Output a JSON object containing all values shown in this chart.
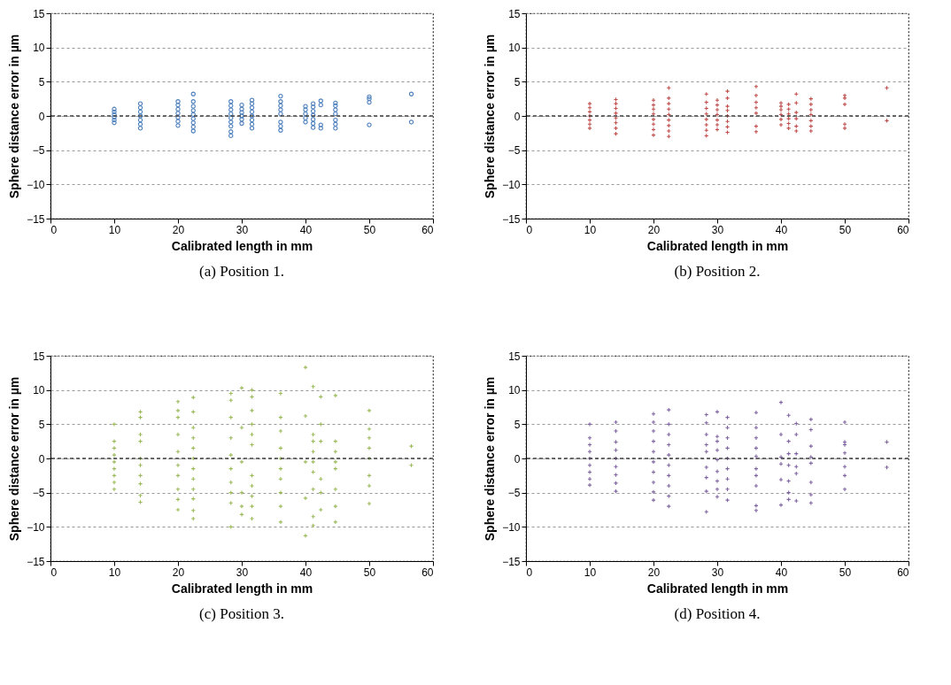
{
  "chart_data": [
    {
      "type": "scatter",
      "xlabel": "Calibrated length in mm",
      "ylabel": "Sphere distance error in µm",
      "annotations": [
        "(a) Position 1."
      ],
      "xlim": [
        0,
        60
      ],
      "xticks": [
        0,
        10,
        20,
        30,
        40,
        50,
        60
      ],
      "ylim": [
        -15,
        15
      ],
      "yticks": [
        -15,
        -10,
        -5,
        0,
        5,
        10,
        15
      ],
      "grid": "y",
      "marker": "circle",
      "legend": false,
      "ref_lines": [
        {
          "axis": "y",
          "value": 0,
          "color": "#404040",
          "line_style": "dashed"
        }
      ],
      "series": [
        {
          "color": "#4f81bd",
          "x": [
            10,
            10,
            10,
            10,
            10,
            10,
            14.1,
            14.1,
            14.1,
            14.1,
            14.1,
            14.1,
            14.1,
            20,
            20,
            20,
            20,
            20,
            20,
            20,
            22.4,
            22.4,
            22.4,
            22.4,
            22.4,
            22.4,
            22.4,
            22.4,
            22.4,
            28.3,
            28.3,
            28.3,
            28.3,
            28.3,
            28.3,
            28.3,
            28.3,
            28.3,
            30,
            30,
            30,
            30,
            30,
            30,
            31.6,
            31.6,
            31.6,
            31.6,
            31.6,
            31.6,
            31.6,
            31.6,
            36.1,
            36.1,
            36.1,
            36.1,
            36.1,
            36.1,
            36.1,
            36.1,
            40,
            40,
            40,
            40,
            40,
            41.2,
            41.2,
            41.2,
            41.2,
            41.2,
            41.2,
            41.2,
            42.4,
            42.4,
            42.4,
            42.4,
            44.7,
            44.7,
            44.7,
            44.7,
            44.7,
            44.7,
            44.7,
            50,
            50,
            50,
            50,
            56.6,
            56.6
          ],
          "values": [
            -1,
            -0.6,
            -0.2,
            0.2,
            0.6,
            1,
            -1.8,
            -1.2,
            -0.6,
            0,
            0.6,
            1.2,
            1.8,
            -1.4,
            -0.8,
            -0.2,
            0.4,
            1,
            1.6,
            2.1,
            -2.2,
            -1.6,
            -1,
            -0.4,
            0.2,
            0.8,
            1.4,
            2.1,
            3.2,
            -2.9,
            -2.3,
            -1.5,
            -0.9,
            -0.3,
            0.3,
            0.9,
            1.5,
            2.1,
            -1.1,
            -0.5,
            0,
            0.5,
            1,
            1.6,
            -1.8,
            -1.2,
            -0.6,
            0,
            0.6,
            1.2,
            1.8,
            2.3,
            -2.1,
            -1.5,
            -0.9,
            0.3,
            0.9,
            1.5,
            2.1,
            2.9,
            -0.9,
            -0.3,
            0.3,
            0.9,
            1.4,
            -1.7,
            -1.1,
            -0.5,
            0.1,
            0.7,
            1.3,
            1.8,
            -1.8,
            -1.3,
            1.6,
            2.2,
            -1.8,
            -1.2,
            -0.6,
            0.3,
            0.9,
            1.5,
            1.9,
            -1.3,
            2,
            2.5,
            2.8,
            -0.9,
            3.2
          ]
        }
      ]
    },
    {
      "type": "scatter",
      "xlabel": "Calibrated length in mm",
      "ylabel": "Sphere distance error in µm",
      "annotations": [
        "(b) Position 2."
      ],
      "xlim": [
        0,
        60
      ],
      "xticks": [
        0,
        10,
        20,
        30,
        40,
        50,
        60
      ],
      "ylim": [
        -15,
        15
      ],
      "yticks": [
        -15,
        -10,
        -5,
        0,
        5,
        10,
        15
      ],
      "grid": "y",
      "marker": "cross",
      "legend": false,
      "ref_lines": [
        {
          "axis": "y",
          "value": 0,
          "color": "#404040",
          "line_style": "dashed"
        }
      ],
      "series": [
        {
          "color": "#c0504d",
          "x": [
            10,
            10,
            10,
            10,
            10,
            10,
            10,
            14.1,
            14.1,
            14.1,
            14.1,
            14.1,
            14.1,
            14.1,
            14.1,
            20,
            20,
            20,
            20,
            20,
            20,
            20,
            20,
            22.4,
            22.4,
            22.4,
            22.4,
            22.4,
            22.4,
            22.4,
            22.4,
            22.4,
            28.3,
            28.3,
            28.3,
            28.3,
            28.3,
            28.3,
            28.3,
            28.3,
            30,
            30,
            30,
            30,
            30,
            30,
            30,
            31.6,
            31.6,
            31.6,
            31.6,
            31.6,
            31.6,
            31.6,
            31.6,
            36.1,
            36.1,
            36.1,
            36.1,
            36.1,
            36.1,
            36.1,
            40,
            40,
            40,
            40,
            40,
            40,
            41.2,
            41.2,
            41.2,
            41.2,
            41.2,
            41.2,
            42.4,
            42.4,
            42.4,
            42.4,
            42.4,
            42.4,
            44.7,
            44.7,
            44.7,
            44.7,
            44.7,
            44.7,
            44.7,
            50,
            50,
            50,
            50,
            50,
            56.6,
            56.6
          ],
          "values": [
            -1.8,
            -1.2,
            -0.6,
            0,
            0.6,
            1.2,
            1.8,
            -2.6,
            -1.8,
            -1,
            -0.3,
            0.4,
            1.1,
            1.8,
            2.4,
            -2.8,
            -2,
            -1.2,
            -0.5,
            0.3,
            1,
            1.6,
            2.3,
            -3,
            -2.2,
            -1.4,
            -0.6,
            0.2,
            1,
            1.8,
            2.6,
            4.1,
            -2.9,
            -2.1,
            -1.3,
            -0.5,
            0.3,
            1.1,
            2,
            3.2,
            -2,
            -1.3,
            -0.6,
            0.2,
            0.9,
            1.6,
            2.3,
            -2.4,
            -1.6,
            -0.8,
            0,
            0.8,
            1.4,
            2.6,
            3.6,
            -2.3,
            -1.5,
            0.4,
            1.2,
            2,
            3,
            4.3,
            -1.3,
            -0.5,
            0.2,
            0.9,
            1.4,
            1.9,
            -1.8,
            -1.1,
            -0.4,
            0.3,
            1,
            1.7,
            -2.2,
            -1.5,
            -0.4,
            0.5,
            1.9,
            3.2,
            -2.2,
            -1.5,
            -0.7,
            0.2,
            0.9,
            1.7,
            2.5,
            -1.8,
            -1.2,
            1.7,
            2.6,
            3,
            -0.7,
            4.1
          ]
        }
      ]
    },
    {
      "type": "scatter",
      "xlabel": "Calibrated length in mm",
      "ylabel": "Sphere distance error in µm",
      "annotations": [
        "(c) Position 3."
      ],
      "xlim": [
        0,
        60
      ],
      "xticks": [
        0,
        10,
        20,
        30,
        40,
        50,
        60
      ],
      "ylim": [
        -15,
        15
      ],
      "yticks": [
        -15,
        -10,
        -5,
        0,
        5,
        10,
        15
      ],
      "grid": "y",
      "marker": "cross",
      "legend": false,
      "ref_lines": [
        {
          "axis": "y",
          "value": 0,
          "color": "#404040",
          "line_style": "dashed"
        }
      ],
      "series": [
        {
          "color": "#9bbb59",
          "x": [
            10,
            10,
            10,
            10,
            10,
            10,
            10,
            10,
            10,
            14.1,
            14.1,
            14.1,
            14.1,
            14.1,
            14.1,
            14.1,
            14.1,
            14.1,
            14.1,
            20,
            20,
            20,
            20,
            20,
            20,
            20,
            20,
            20,
            20,
            22.4,
            22.4,
            22.4,
            22.4,
            22.4,
            22.4,
            22.4,
            22.4,
            22.4,
            22.4,
            22.4,
            22.4,
            28.3,
            28.3,
            28.3,
            28.3,
            28.3,
            28.3,
            28.3,
            28.3,
            28.3,
            28.3,
            30,
            30,
            30,
            30,
            30,
            30,
            31.6,
            31.6,
            31.6,
            31.6,
            31.6,
            31.6,
            31.6,
            31.6,
            31.6,
            31.6,
            31.6,
            36.1,
            36.1,
            36.1,
            36.1,
            36.1,
            36.1,
            36.1,
            36.1,
            36.1,
            36.1,
            40,
            40,
            40,
            40,
            40,
            41.2,
            41.2,
            41.2,
            41.2,
            41.2,
            41.2,
            41.2,
            41.2,
            41.2,
            42.4,
            42.4,
            42.4,
            42.4,
            42.4,
            42.4,
            44.7,
            44.7,
            44.7,
            44.7,
            44.7,
            44.7,
            44.7,
            44.7,
            50,
            50,
            50,
            50,
            50,
            50,
            50,
            50,
            56.6,
            56.6
          ],
          "values": [
            -4.5,
            -3.5,
            -2.5,
            -1.5,
            -0.5,
            0.5,
            1.5,
            2.5,
            5,
            -6.4,
            -5.4,
            -3.7,
            -2.5,
            -1,
            0,
            2.5,
            3.5,
            6,
            6.8,
            -7.5,
            -6,
            -4.5,
            -2.5,
            -1,
            1,
            3.5,
            6,
            7,
            8.3,
            -8.8,
            -7.6,
            -5.9,
            -4.5,
            -3,
            -1.5,
            0,
            1.5,
            3,
            4.5,
            6.8,
            8.9,
            -10,
            -6.5,
            -5,
            -3.5,
            -1.5,
            0.5,
            3,
            6,
            8.5,
            9.5,
            -8.2,
            -7,
            -5,
            -0.5,
            4.5,
            10.3,
            -8.8,
            -7,
            -5.5,
            -4,
            -2.5,
            2,
            3.5,
            5,
            7,
            9,
            10,
            -9.3,
            -7,
            -5,
            -3,
            -1.5,
            0,
            1.5,
            4,
            6,
            9.5,
            -11.3,
            -5.8,
            -0.5,
            6.2,
            13.3,
            -9.8,
            -8.5,
            -4.5,
            -2,
            -0.5,
            1,
            2.5,
            3.5,
            10.5,
            -7.5,
            -5,
            -3,
            2.5,
            5,
            9,
            -9.3,
            -7,
            -4.5,
            -1.5,
            -0.5,
            1,
            2.5,
            9.2,
            -6.6,
            -4,
            -2.5,
            0,
            1.5,
            3,
            4.3,
            7,
            -1,
            1.8
          ]
        }
      ]
    },
    {
      "type": "scatter",
      "xlabel": "Calibrated length in mm",
      "ylabel": "Sphere distance error in µm",
      "annotations": [
        "(d) Position 4."
      ],
      "xlim": [
        0,
        60
      ],
      "xticks": [
        0,
        10,
        20,
        30,
        40,
        50,
        60
      ],
      "ylim": [
        -15,
        15
      ],
      "yticks": [
        -15,
        -10,
        -5,
        0,
        5,
        10,
        15
      ],
      "grid": "y",
      "marker": "cross",
      "legend": false,
      "ref_lines": [
        {
          "axis": "y",
          "value": 0,
          "color": "#404040",
          "line_style": "dashed"
        }
      ],
      "series": [
        {
          "color": "#8064a2",
          "x": [
            10,
            10,
            10,
            10,
            10,
            10,
            10,
            10,
            10,
            14.1,
            14.1,
            14.1,
            14.1,
            14.1,
            14.1,
            14.1,
            14.1,
            14.1,
            20,
            20,
            20,
            20,
            20,
            20,
            20,
            20,
            20,
            20,
            22.4,
            22.4,
            22.4,
            22.4,
            22.4,
            22.4,
            22.4,
            22.4,
            22.4,
            22.4,
            28.3,
            28.3,
            28.3,
            28.3,
            28.3,
            28.3,
            28.3,
            28.3,
            28.3,
            30,
            30,
            30,
            30,
            30,
            30,
            30,
            30,
            30,
            31.6,
            31.6,
            31.6,
            31.6,
            31.6,
            31.6,
            31.6,
            31.6,
            31.6,
            36.1,
            36.1,
            36.1,
            36.1,
            36.1,
            36.1,
            36.1,
            36.1,
            36.1,
            36.1,
            40,
            40,
            40,
            40,
            40,
            40,
            41.2,
            41.2,
            41.2,
            41.2,
            41.2,
            41.2,
            41.2,
            42.4,
            42.4,
            42.4,
            42.4,
            42.4,
            42.4,
            44.7,
            44.7,
            44.7,
            44.7,
            44.7,
            44.7,
            44.7,
            44.7,
            50,
            50,
            50,
            50,
            50,
            50,
            50,
            56.6,
            56.6
          ],
          "values": [
            -3.9,
            -3,
            -2,
            -1,
            0,
            1,
            2,
            3,
            5,
            -4.8,
            -3.6,
            -2.4,
            -1.2,
            0,
            1.2,
            2.4,
            4,
            5.3,
            -6.1,
            -4.9,
            -3.5,
            -2,
            -0.5,
            1,
            2.5,
            4,
            5.3,
            6.5,
            -7,
            -5.5,
            -4,
            -2.5,
            -1,
            0.5,
            2,
            3.5,
            5,
            7.1,
            -7.8,
            -4.8,
            -2.8,
            -1.3,
            1,
            2,
            3.5,
            5.2,
            6.4,
            -5.6,
            -4.5,
            -3.3,
            -1.9,
            -0.2,
            1.2,
            2.5,
            3.2,
            6.8,
            -6.1,
            -4.5,
            -3,
            -1.5,
            0,
            1.5,
            3,
            4.5,
            6,
            -7.6,
            -6.9,
            -4,
            -2.5,
            -1.5,
            0.3,
            1.5,
            3,
            4.5,
            6.7,
            -6.8,
            -3.1,
            -0.8,
            0.2,
            3.5,
            8.2,
            -6,
            -5,
            -3.3,
            -1,
            0.7,
            2.5,
            6.3,
            -6.2,
            -2.2,
            -1.2,
            0.7,
            3.5,
            5.1,
            -6.5,
            -5.3,
            -3.5,
            -0.7,
            0.2,
            1.8,
            4.2,
            5.7,
            -4.5,
            -2.5,
            -1.2,
            0.8,
            2,
            2.4,
            5.3,
            -1.3,
            2.4
          ]
        }
      ]
    }
  ]
}
